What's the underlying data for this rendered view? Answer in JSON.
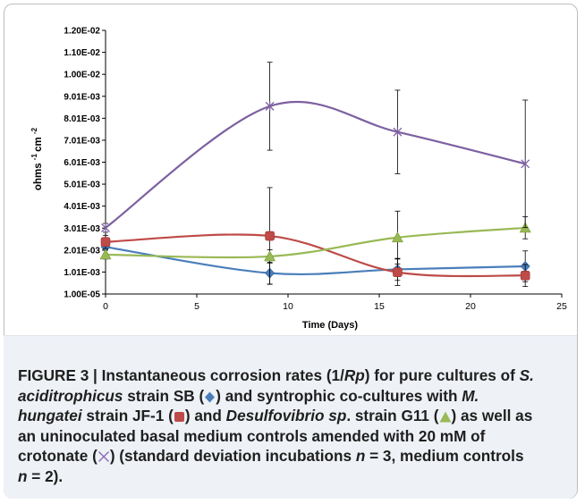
{
  "chart_data": {
    "type": "line",
    "title": "",
    "xlabel": "Time (Days)",
    "ylabel": "ohms",
    "ylabel_parts": [
      "ohms",
      "-1",
      "cm",
      "-2"
    ],
    "xlim": [
      0,
      25
    ],
    "ylim": [
      1e-05,
      0.012
    ],
    "x_ticks": [
      "0",
      "5",
      "10",
      "15",
      "20",
      "25"
    ],
    "y_ticks": [
      "1.00E-05",
      "1.01E-03",
      "2.01E-03",
      "3.01E-03",
      "4.01E-03",
      "5.01E-03",
      "6.01E-03",
      "7.01E-03",
      "8.01E-03",
      "9.01E-03",
      "1.00E-02",
      "1.10E-02",
      "1.20E-02"
    ],
    "grid": false,
    "legend": "none",
    "series": [
      {
        "marker": "diamond",
        "color": "#4a7ebb",
        "x": [
          0,
          9,
          16,
          23
        ],
        "y": [
          0.00215,
          0.00096,
          0.00113,
          0.00127
        ],
        "err": [
          0.0003,
          0.0005,
          0.0005,
          0.0007
        ]
      },
      {
        "marker": "square",
        "color": "#be4b48",
        "x": [
          0,
          9,
          16,
          23
        ],
        "y": [
          0.00238,
          0.00265,
          0.001,
          0.00085
        ],
        "err": [
          0.0003,
          0.0022,
          0.0006,
          0.0005
        ]
      },
      {
        "marker": "triangle",
        "color": "#98b954",
        "x": [
          0,
          9,
          16,
          23
        ],
        "y": [
          0.0018,
          0.00172,
          0.00258,
          0.00302
        ],
        "err": [
          0.0002,
          0.0003,
          0.0012,
          0.0005
        ]
      },
      {
        "marker": "star",
        "color": "#7d60a0",
        "x": [
          0,
          9,
          16,
          23
        ],
        "y": [
          0.00302,
          0.00855,
          0.00738,
          0.00593
        ],
        "err": [
          0.0002,
          0.002,
          0.0019,
          0.0029
        ]
      }
    ]
  },
  "caption": {
    "p1": "FIGURE 3 | Instantaneous corrosion rates (1/",
    "p2": "Rp",
    "p3": ") for pure cultures of ",
    "p4": "S.",
    "p5": "aciditrophicus",
    "p6": " strain SB (",
    "p7": ") and syntrophic co-cultures with ",
    "p8": "M.",
    "p9": "hungatei",
    "p10": " strain JF-1 (",
    "p11": ") and ",
    "p12": "Desulfovibrio sp",
    "p13": ". strain G11 (",
    "p14": ") as well as",
    "p15": "an uninoculated basal medium controls amended with 20 mM of",
    "p16": "crotonate (",
    "p17": ") (standard deviation incubations ",
    "p18": "n",
    "p19": " = 3, medium controls",
    "p20": "n",
    "p21": " = 2)."
  }
}
